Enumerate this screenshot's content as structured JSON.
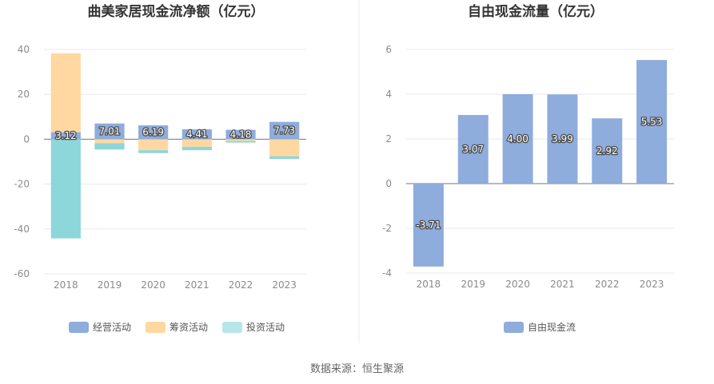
{
  "footer_source": "数据来源：恒生聚源",
  "colors": {
    "operating": "#8eacdc",
    "financing": "#fed8a0",
    "investing": "#8dd6d9",
    "free_cash_flow": "#8eacdc",
    "axis": "#6f7785",
    "grid": "#e7eaf0"
  },
  "chart_data": [
    {
      "type": "bar",
      "stacked": true,
      "title": "曲美家居现金流净额（亿元）",
      "categories": [
        "2018",
        "2019",
        "2020",
        "2021",
        "2022",
        "2023"
      ],
      "ylim": [
        -60,
        40
      ],
      "yticks": [
        -60,
        -40,
        -20,
        0,
        20,
        40
      ],
      "grid": true,
      "legend_position": "bottom",
      "series": [
        {
          "name": "经营活动",
          "values": [
            3.12,
            7.01,
            6.19,
            4.41,
            4.18,
            7.73
          ],
          "labels": [
            "3.12",
            "7.01",
            "6.19",
            "4.41",
            "4.18",
            "7.73"
          ]
        },
        {
          "name": "筹资活动",
          "values": [
            35.2,
            -1.8,
            -4.9,
            -3.4,
            -0.8,
            -7.6
          ]
        },
        {
          "name": "投资活动",
          "values": [
            -44.2,
            -2.8,
            -1.3,
            -1.5,
            -0.7,
            -1.2
          ]
        }
      ]
    },
    {
      "type": "bar",
      "title": "自由现金流量（亿元）",
      "categories": [
        "2018",
        "2019",
        "2020",
        "2021",
        "2022",
        "2023"
      ],
      "ylim": [
        -4,
        6
      ],
      "yticks": [
        -4,
        -2,
        0,
        2,
        4,
        6
      ],
      "grid": true,
      "legend_position": "bottom",
      "series": [
        {
          "name": "自由现金流",
          "values": [
            -3.71,
            3.07,
            4.0,
            3.99,
            2.92,
            5.53
          ],
          "labels": [
            "-3.71",
            "3.07",
            "4.00",
            "3.99",
            "2.92",
            "5.53"
          ]
        }
      ]
    }
  ]
}
